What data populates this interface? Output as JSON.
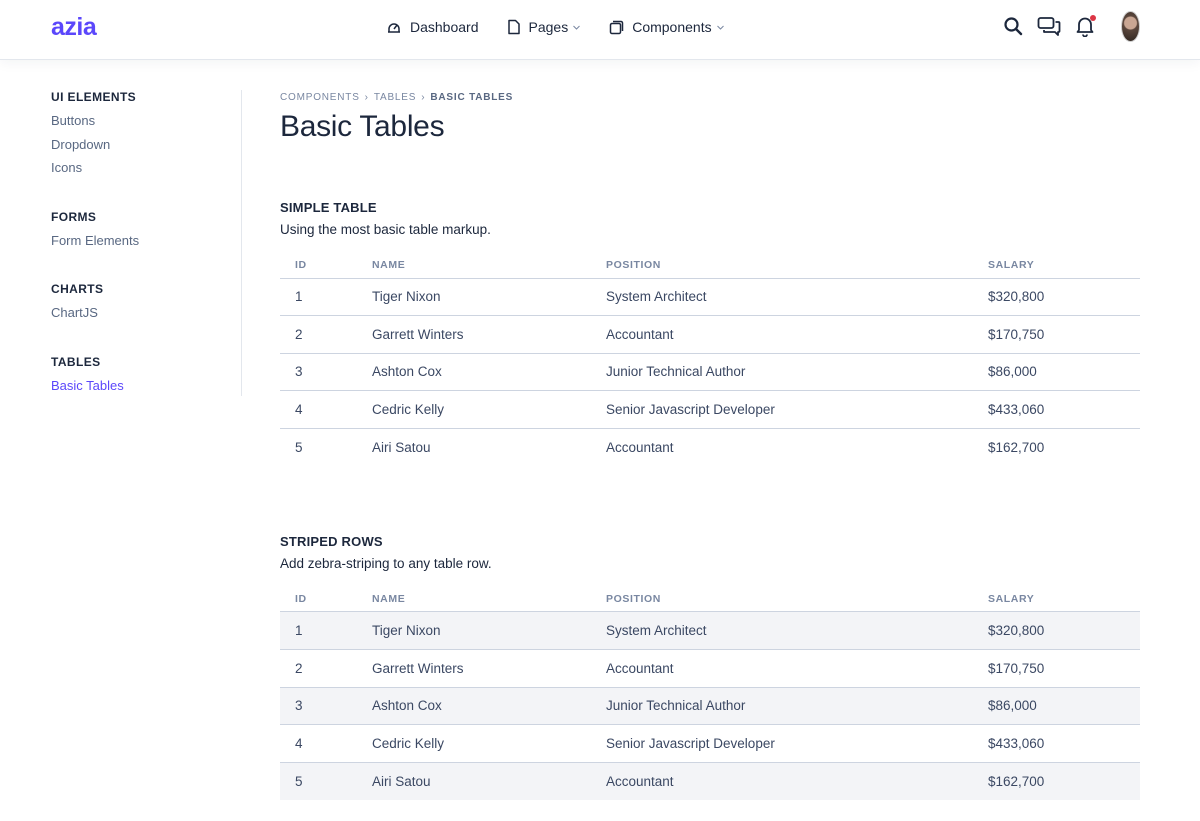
{
  "header": {
    "logo": "azia",
    "nav": [
      {
        "label": "Dashboard",
        "icon": "dashboard-icon"
      },
      {
        "label": "Pages",
        "icon": "page-icon",
        "dropdown": true
      },
      {
        "label": "Components",
        "icon": "box-icon",
        "dropdown": true
      }
    ],
    "icons": [
      "search-icon",
      "chat-icon",
      "bell-icon",
      "avatar"
    ]
  },
  "sidebar": {
    "groups": [
      {
        "title": "UI ELEMENTS",
        "links": [
          "Buttons",
          "Dropdown",
          "Icons"
        ]
      },
      {
        "title": "FORMS",
        "links": [
          "Form Elements"
        ]
      },
      {
        "title": "CHARTS",
        "links": [
          "ChartJS"
        ]
      },
      {
        "title": "TABLES",
        "links": [
          "Basic Tables"
        ]
      }
    ],
    "active": "Basic Tables"
  },
  "breadcrumb": [
    "COMPONENTS",
    "TABLES",
    "BASIC TABLES"
  ],
  "page_title": "Basic Tables",
  "simple_table": {
    "title": "SIMPLE TABLE",
    "description": "Using the most basic table markup.",
    "columns": [
      "ID",
      "NAME",
      "POSITION",
      "SALARY"
    ],
    "rows": [
      [
        "1",
        "Tiger Nixon",
        "System Architect",
        "$320,800"
      ],
      [
        "2",
        "Garrett Winters",
        "Accountant",
        "$170,750"
      ],
      [
        "3",
        "Ashton Cox",
        "Junior Technical Author",
        "$86,000"
      ],
      [
        "4",
        "Cedric Kelly",
        "Senior Javascript Developer",
        "$433,060"
      ],
      [
        "5",
        "Airi Satou",
        "Accountant",
        "$162,700"
      ]
    ]
  },
  "striped_table": {
    "title": "STRIPED ROWS",
    "description": "Add zebra-striping to any table row.",
    "columns": [
      "ID",
      "NAME",
      "POSITION",
      "SALARY"
    ],
    "rows": [
      [
        "1",
        "Tiger Nixon",
        "System Architect",
        "$320,800"
      ],
      [
        "2",
        "Garrett Winters",
        "Accountant",
        "$170,750"
      ],
      [
        "3",
        "Ashton Cox",
        "Junior Technical Author",
        "$86,000"
      ],
      [
        "4",
        "Cedric Kelly",
        "Senior Javascript Developer",
        "$433,060"
      ],
      [
        "5",
        "Airi Satou",
        "Accountant",
        "$162,700"
      ]
    ]
  },
  "colors": {
    "brand": "#5b47fb",
    "text": "#1c273c",
    "muted": "#7987a1",
    "stripe": "#f3f4f7",
    "notification": "#dc3545"
  }
}
